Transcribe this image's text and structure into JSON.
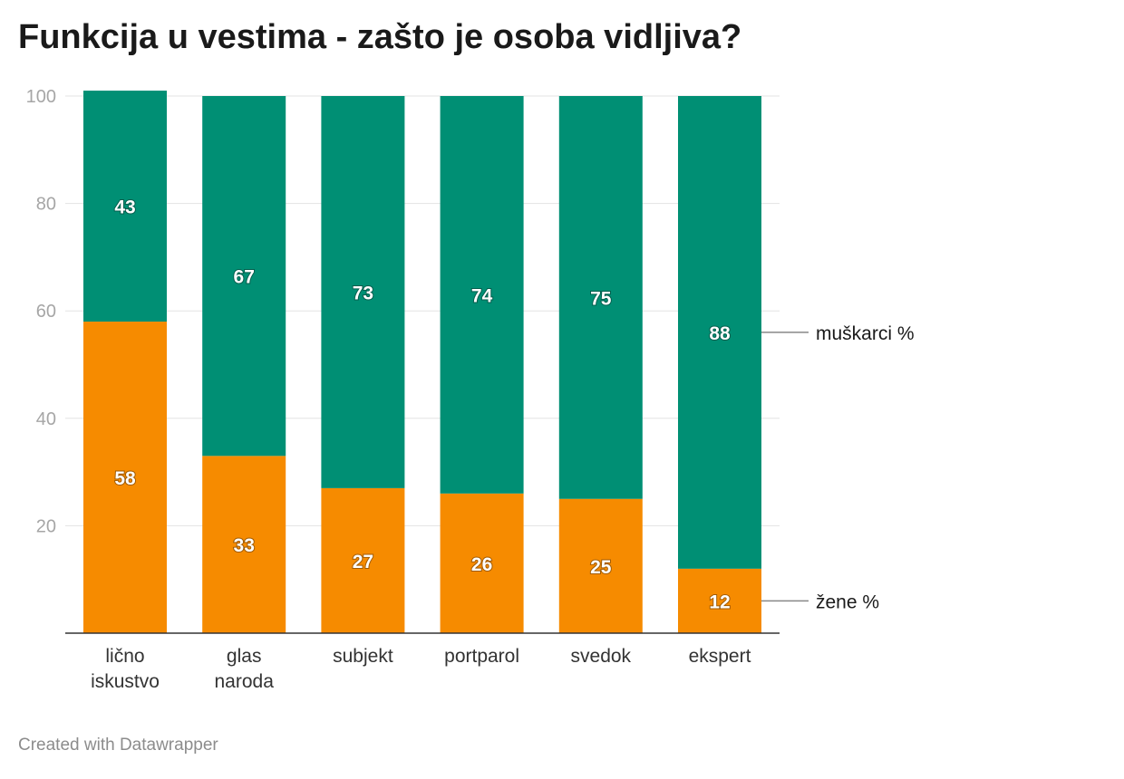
{
  "title": "Funkcija u vestima - zašto je osoba vidljiva?",
  "footer": "Created with Datawrapper",
  "chart_data": {
    "type": "bar",
    "stacked": true,
    "categories": [
      [
        "lično",
        "iskustvo"
      ],
      [
        "glas",
        "naroda"
      ],
      [
        "subjekt"
      ],
      [
        "portparol"
      ],
      [
        "svedok"
      ],
      [
        "ekspert"
      ]
    ],
    "series": [
      {
        "name": "žene %",
        "color": "#f68b00",
        "values": [
          58,
          33,
          27,
          26,
          25,
          12
        ]
      },
      {
        "name": "muškarci %",
        "color": "#008f74",
        "values": [
          43,
          67,
          73,
          74,
          75,
          88
        ]
      }
    ],
    "ylim": [
      0,
      100
    ],
    "yticks": [
      20,
      40,
      60,
      80,
      100
    ],
    "grid": true,
    "legend": "right, inline labels"
  }
}
